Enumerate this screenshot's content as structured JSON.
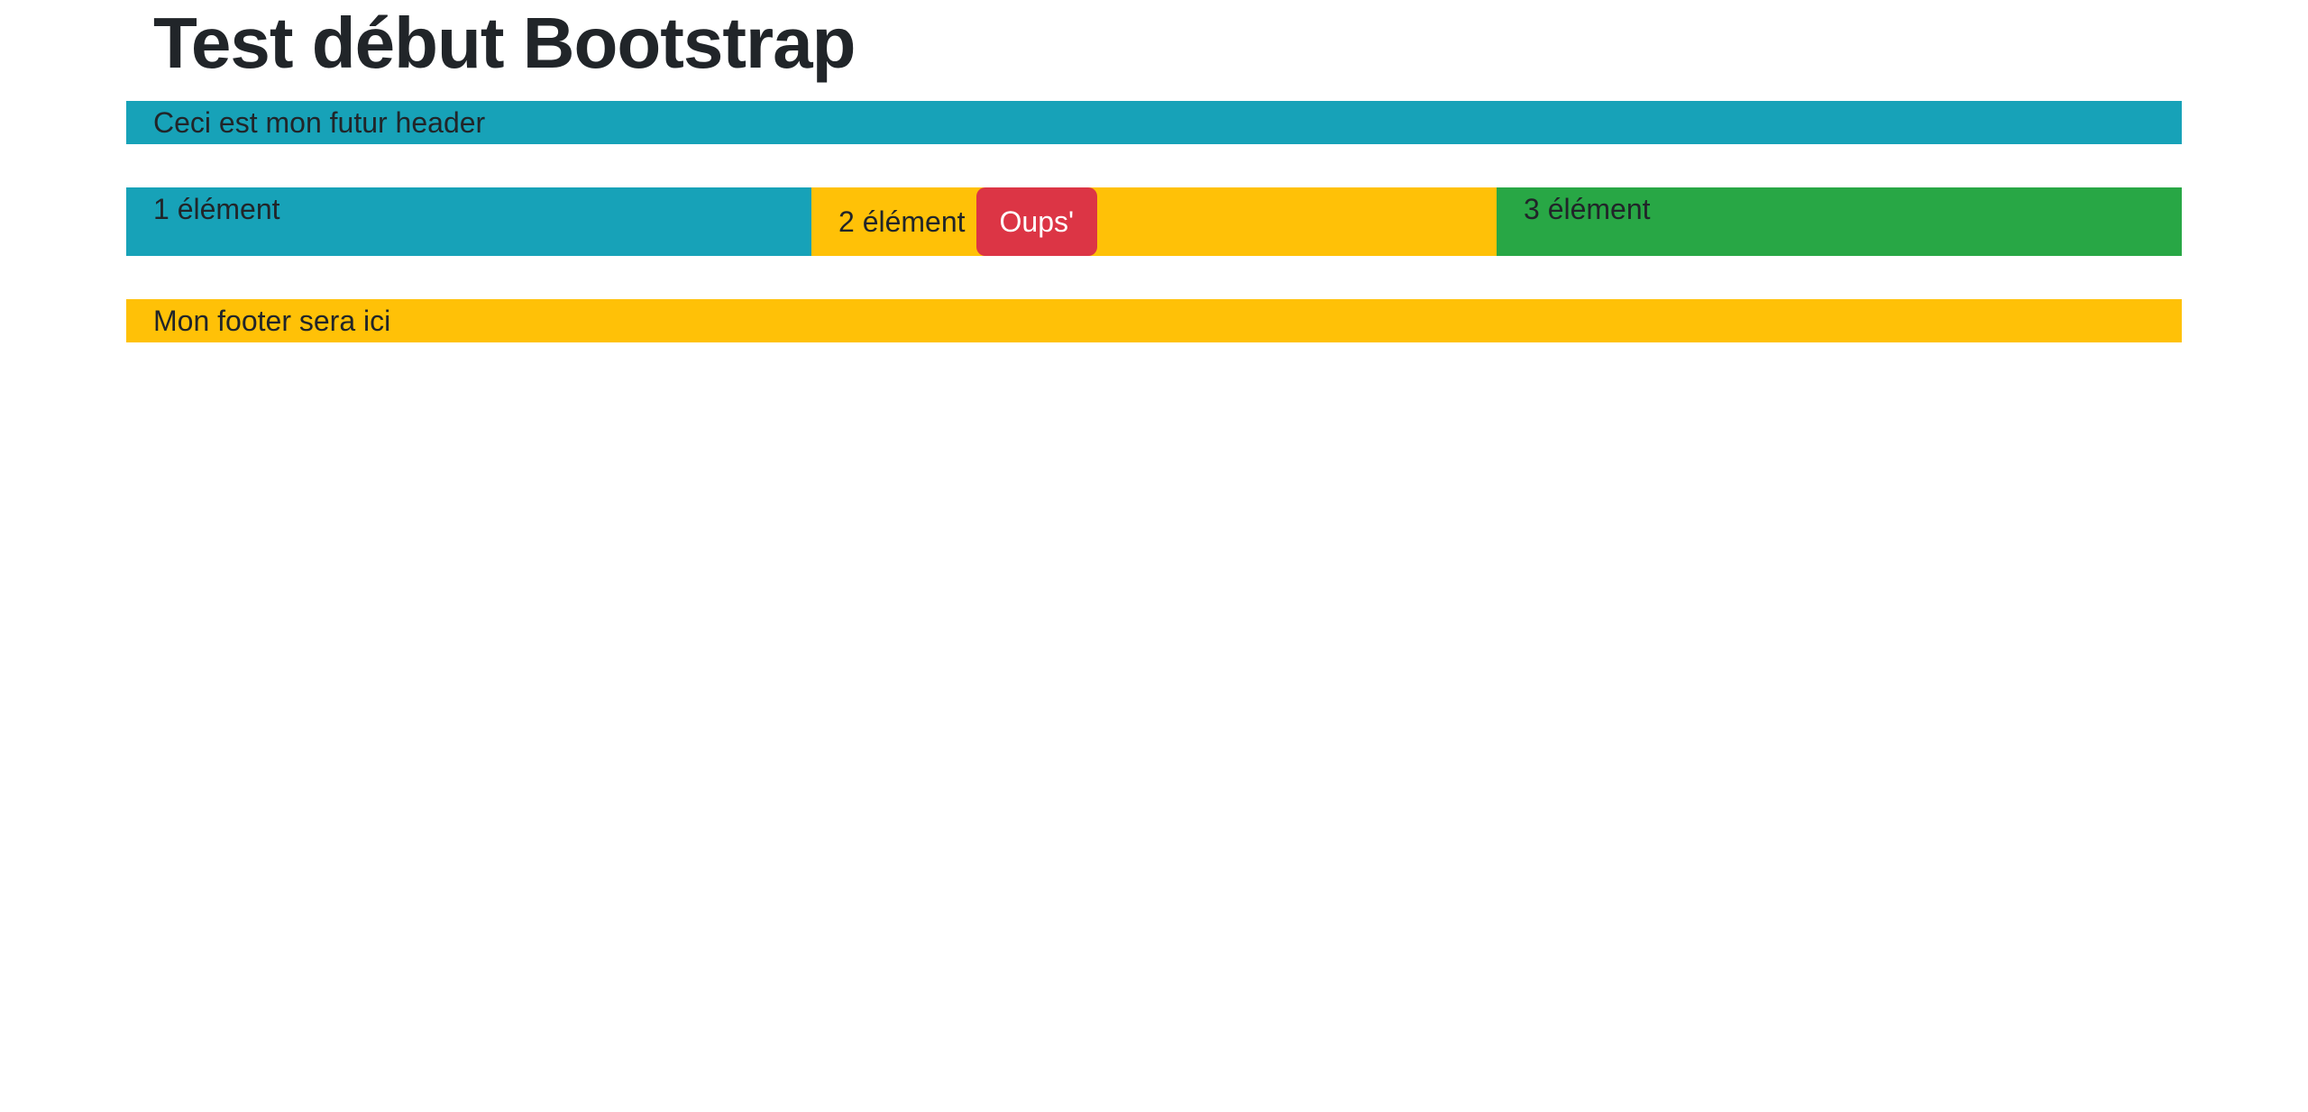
{
  "page": {
    "title": "Test début Bootstrap"
  },
  "header": {
    "text": "Ceci est mon futur header",
    "bg": "#17a2b8"
  },
  "columns": [
    {
      "label": "1 élément",
      "bg": "#17a2b8"
    },
    {
      "label": "2 élément",
      "bg": "#ffc107",
      "button": {
        "label": "Oups'",
        "bg": "#dc3545",
        "color": "#ffffff"
      }
    },
    {
      "label": "3 élément",
      "bg": "#28a745"
    }
  ],
  "footer": {
    "text": "Mon footer sera ici",
    "bg": "#ffc107"
  },
  "colors": {
    "text": "#212529",
    "background": "#ffffff"
  }
}
